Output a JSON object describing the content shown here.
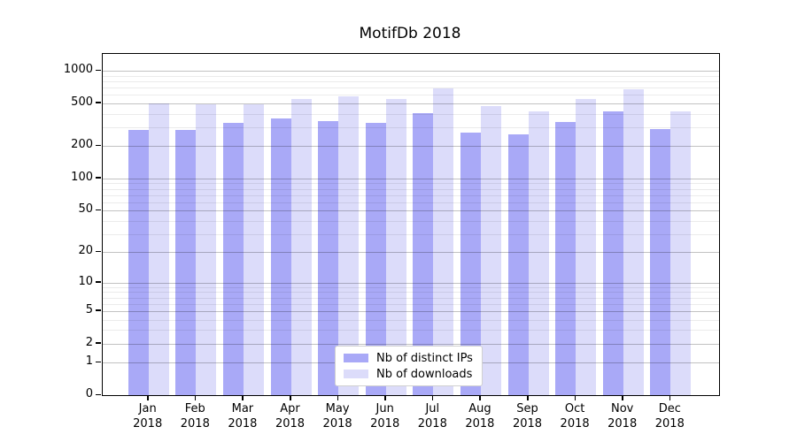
{
  "title": "MotifDb 2018",
  "legend": {
    "items": [
      {
        "label": "Nb of distinct IPs",
        "color": "#a9a9f7"
      },
      {
        "label": "Nb of downloads",
        "color": "#dcdcfa"
      }
    ]
  },
  "axes": {
    "y_tick_labels": [
      "0",
      "1",
      "2",
      "5",
      "10",
      "20",
      "50",
      "100",
      "200",
      "500",
      "1000"
    ],
    "y_minor_values": [
      3,
      4,
      6,
      7,
      8,
      9,
      30,
      40,
      60,
      70,
      80,
      90,
      300,
      400,
      600,
      700,
      800,
      900
    ],
    "x_tick_year": "2018"
  },
  "chart_data": {
    "type": "bar",
    "title": "MotifDb 2018",
    "categories": [
      "Jan 2018",
      "Feb 2018",
      "Mar 2018",
      "Apr 2018",
      "May 2018",
      "Jun 2018",
      "Jul 2018",
      "Aug 2018",
      "Sep 2018",
      "Oct 2018",
      "Nov 2018",
      "Dec 2018"
    ],
    "series": [
      {
        "name": "Nb of distinct IPs",
        "color": "#a9a9f7",
        "values": [
          285,
          281,
          331,
          361,
          343,
          327,
          406,
          269,
          258,
          336,
          421,
          287
        ]
      },
      {
        "name": "Nb of downloads",
        "color": "#dcdcfa",
        "values": [
          501,
          486,
          488,
          553,
          577,
          549,
          693,
          473,
          420,
          551,
          670,
          422
        ]
      }
    ],
    "xlabel": "",
    "ylabel": "",
    "yscale": "log1p",
    "y_ticks": [
      0,
      1,
      2,
      5,
      10,
      20,
      50,
      100,
      200,
      500,
      1000
    ],
    "ylim": [
      0,
      1430
    ],
    "grid": "major+minor",
    "legend_position": "bottom-center-inside"
  }
}
